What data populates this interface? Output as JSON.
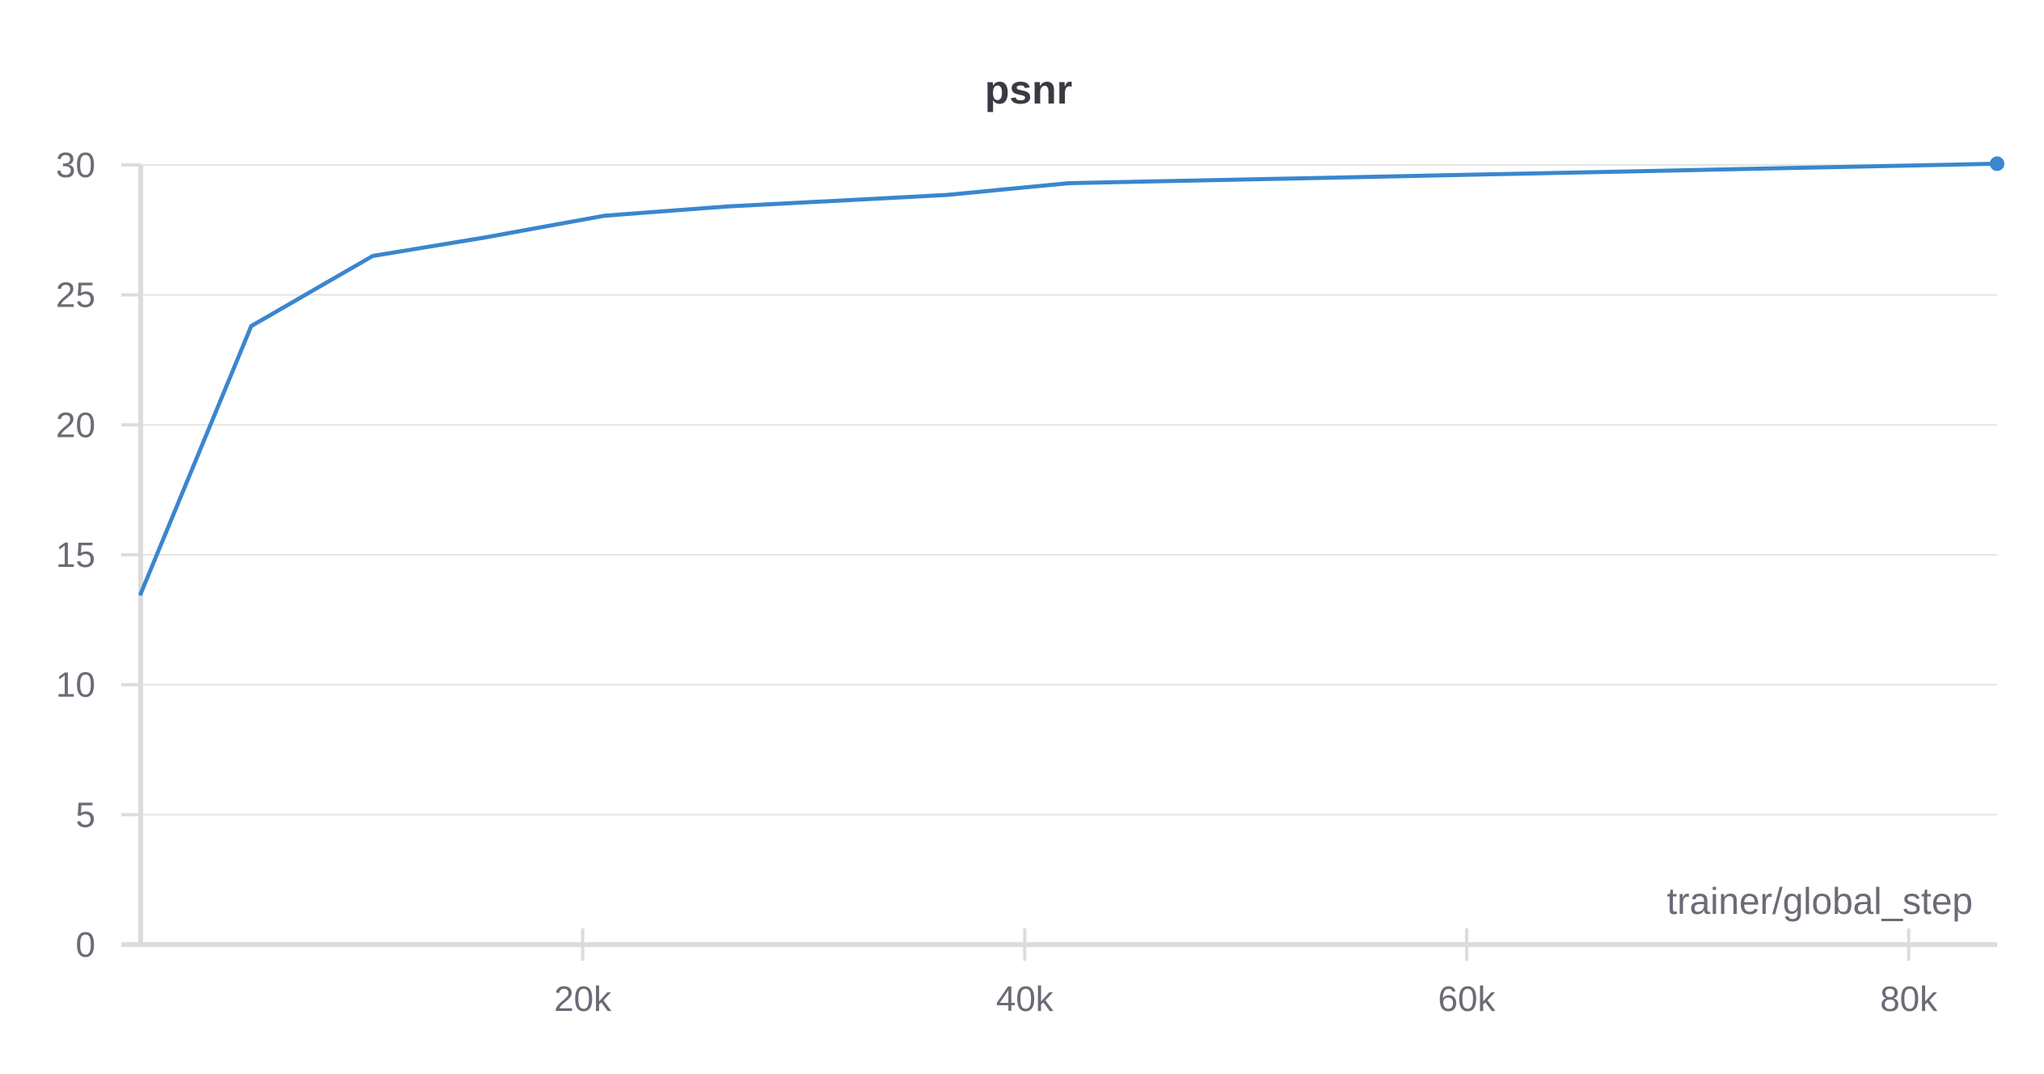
{
  "chart_data": {
    "type": "line",
    "title": "psnr",
    "xlabel": "trainer/global_step",
    "ylabel": "",
    "xlim": [
      0,
      84000
    ],
    "ylim": [
      0,
      30
    ],
    "x_ticks": [
      20000,
      40000,
      60000,
      80000
    ],
    "x_tick_labels": [
      "20k",
      "40k",
      "60k",
      "80k"
    ],
    "y_ticks": [
      0,
      5,
      10,
      15,
      20,
      25,
      30
    ],
    "y_tick_labels": [
      "0",
      "5",
      "10",
      "15",
      "20",
      "25",
      "30"
    ],
    "grid": true,
    "series": [
      {
        "color": "#3a86cf",
        "x": [
          0,
          5000,
          10500,
          15500,
          21000,
          26500,
          36500,
          42000,
          84000
        ],
        "values": [
          13.5,
          23.8,
          26.5,
          27.2,
          28.05,
          28.4,
          28.85,
          29.3,
          30.05
        ]
      }
    ]
  }
}
